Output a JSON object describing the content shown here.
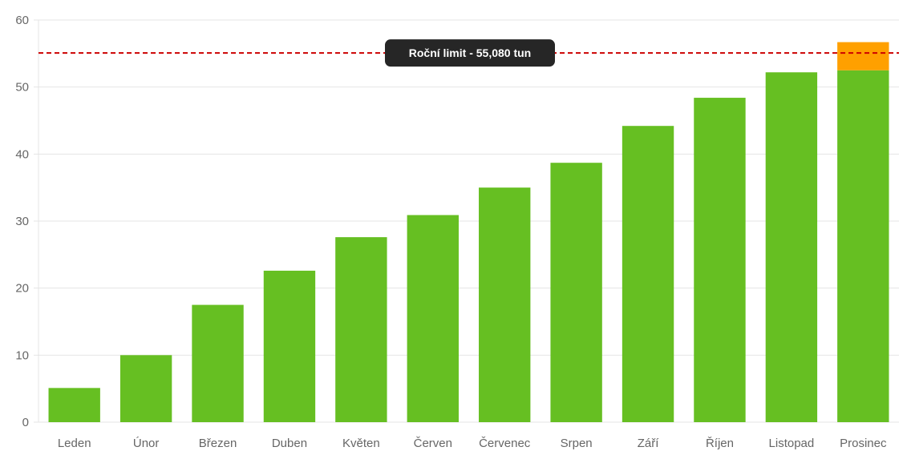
{
  "chart_data": {
    "type": "bar",
    "stacked": true,
    "categories": [
      "Leden",
      "Únor",
      "Březen",
      "Duben",
      "Květen",
      "Červen",
      "Červenec",
      "Srpen",
      "Září",
      "Říjen",
      "Listopad",
      "Prosinec"
    ],
    "series": [
      {
        "values": [
          5.1,
          10.0,
          17.5,
          22.6,
          27.6,
          30.9,
          35.0,
          38.7,
          44.2,
          48.4,
          52.2,
          52.5
        ],
        "color": "#66bf22"
      },
      {
        "values": [
          0,
          0,
          0,
          0,
          0,
          0,
          0,
          0,
          0,
          0,
          0,
          4.2
        ],
        "color": "#ffa000"
      }
    ],
    "ylim": [
      0,
      60
    ],
    "yticks": [
      "0",
      "10",
      "20",
      "30",
      "40",
      "50",
      "60"
    ],
    "grid": true,
    "annotation": {
      "label": "Roční limit - 55,080 tun",
      "value": 55.08,
      "line_color": "#cc0000",
      "label_background": "#262626"
    }
  }
}
